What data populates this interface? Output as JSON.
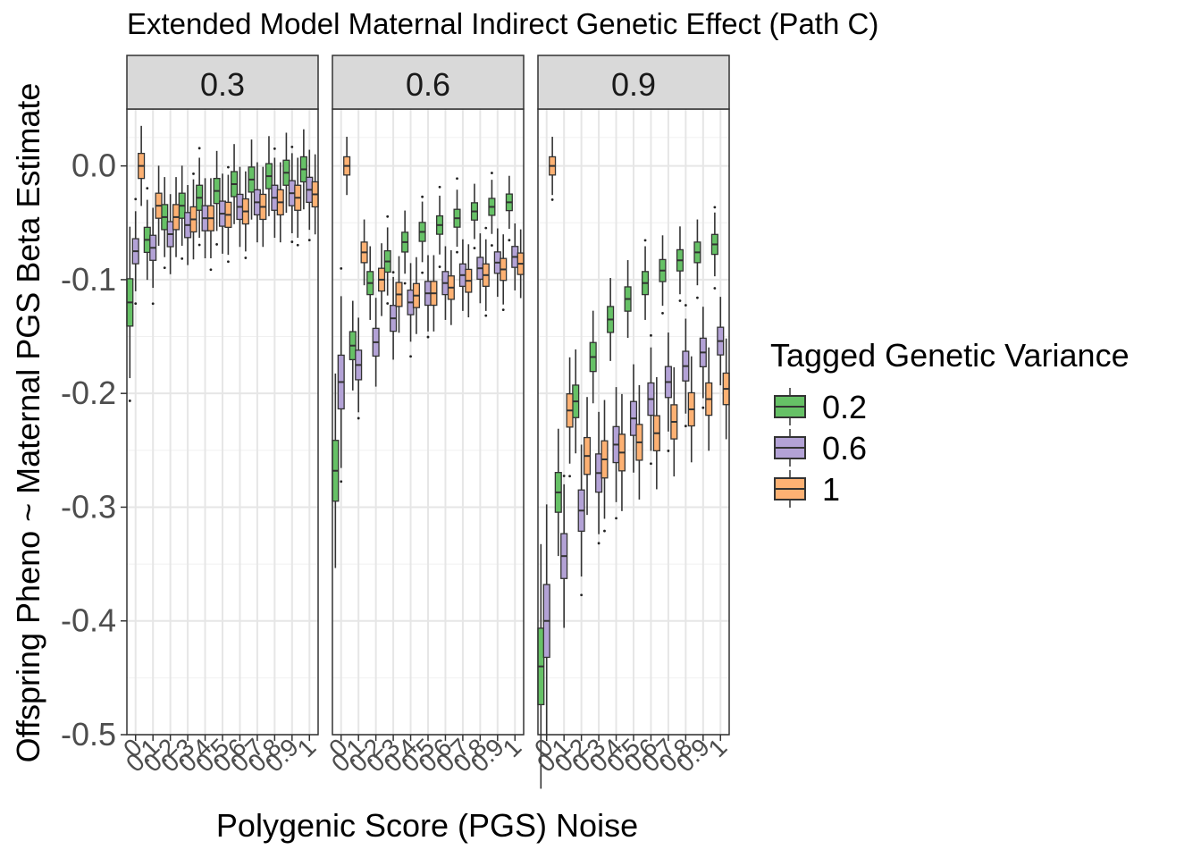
{
  "chart_data": {
    "type": "boxplot",
    "title": "Extended Model Maternal Indirect Genetic Effect (Path C)",
    "xlabel": "Polygenic Score (PGS) Noise",
    "ylabel": "Offspring Pheno ~ Maternal PGS Beta Estimate",
    "ylim": [
      -0.5,
      0.05
    ],
    "yticks": [
      "0.0",
      "-0.1",
      "-0.2",
      "-0.3",
      "-0.4",
      "-0.5"
    ],
    "ytick_values": [
      0.0,
      -0.1,
      -0.2,
      -0.3,
      -0.4,
      -0.5
    ],
    "categories": [
      "0",
      "0.1",
      "0.2",
      "0.3",
      "0.4",
      "0.5",
      "0.6",
      "0.7",
      "0.8",
      "0.9",
      "1"
    ],
    "grid": true,
    "legend": {
      "title": "Tagged Genetic Variance",
      "position": "right",
      "entries": [
        {
          "label": "0.2",
          "color": "#66c166"
        },
        {
          "label": "0.6",
          "color": "#b3a2d6"
        },
        {
          "label": "1",
          "color": "#fdb173"
        }
      ]
    },
    "facets": [
      {
        "label": "0.3",
        "series": [
          {
            "medians": [
              -0.12,
              -0.065,
              -0.045,
              -0.035,
              -0.028,
              -0.022,
              -0.016,
              -0.012,
              -0.009,
              -0.006,
              -0.003
            ]
          },
          {
            "medians": [
              -0.075,
              -0.072,
              -0.06,
              -0.052,
              -0.046,
              -0.042,
              -0.036,
              -0.032,
              -0.028,
              -0.024,
              -0.021
            ]
          },
          {
            "medians": [
              0.0,
              -0.035,
              -0.045,
              -0.047,
              -0.046,
              -0.043,
              -0.04,
              -0.036,
              -0.032,
              -0.028,
              -0.025
            ]
          }
        ]
      },
      {
        "label": "0.6",
        "series": [
          {
            "medians": [
              -0.268,
              -0.158,
              -0.103,
              -0.084,
              -0.067,
              -0.058,
              -0.052,
              -0.046,
              -0.04,
              -0.036,
              -0.032
            ]
          },
          {
            "medians": [
              -0.19,
              -0.175,
              -0.155,
              -0.134,
              -0.12,
              -0.112,
              -0.103,
              -0.096,
              -0.09,
              -0.085,
              -0.08
            ]
          },
          {
            "medians": [
              0.0,
              -0.076,
              -0.1,
              -0.113,
              -0.114,
              -0.112,
              -0.107,
              -0.101,
              -0.096,
              -0.091,
              -0.086
            ]
          }
        ]
      },
      {
        "label": "0.9",
        "series": [
          {
            "medians": [
              -0.44,
              -0.287,
              -0.207,
              -0.168,
              -0.135,
              -0.117,
              -0.103,
              -0.092,
              -0.083,
              -0.076,
              -0.069
            ]
          },
          {
            "medians": [
              -0.4,
              -0.343,
              -0.303,
              -0.27,
              -0.245,
              -0.222,
              -0.205,
              -0.19,
              -0.176,
              -0.164,
              -0.154
            ]
          },
          {
            "medians": [
              0.0,
              -0.215,
              -0.255,
              -0.258,
              -0.252,
              -0.243,
              -0.235,
              -0.225,
              -0.214,
              -0.205,
              -0.196
            ]
          }
        ]
      }
    ]
  }
}
